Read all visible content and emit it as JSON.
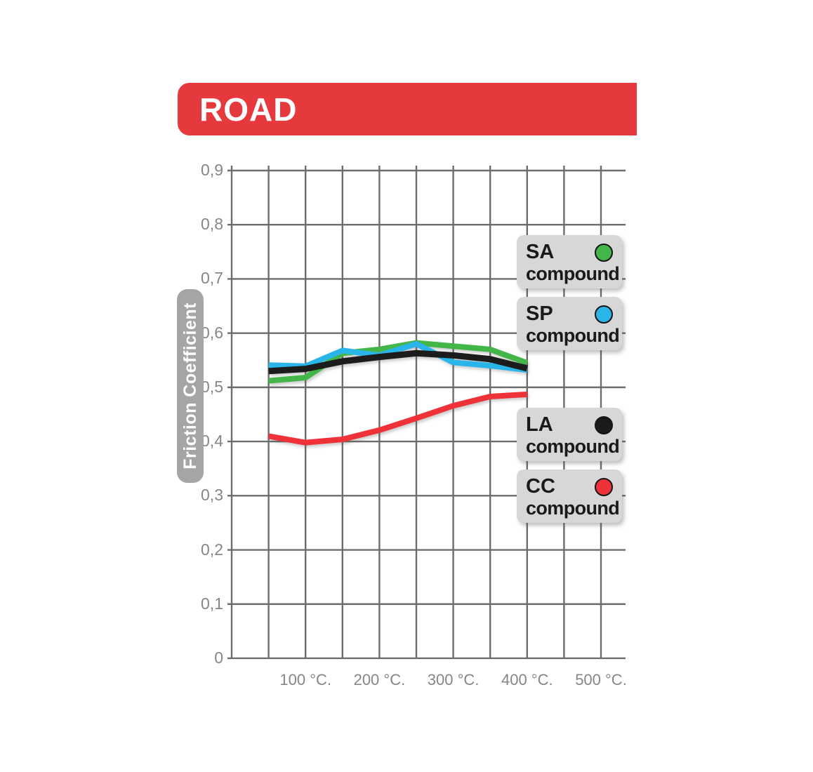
{
  "header": {
    "title": "ROAD"
  },
  "colors": {
    "banner_red": "#e5393e",
    "grid_gray": "#6d6d6d",
    "tick_text_gray": "#868686",
    "legend_box_gray": "#d7d7d8",
    "ylabel_pill_gray": "#a5a5a5",
    "sa_green": "#43b649",
    "sp_blue": "#29b5ea",
    "la_black": "#1a1a1a",
    "cc_red": "#ee3338"
  },
  "chart_data": {
    "type": "line",
    "title": "ROAD",
    "xlabel": "",
    "ylabel": "Friction Coefficient",
    "xlim_degC": [
      0,
      530
    ],
    "ylim": [
      0,
      0.9
    ],
    "grid": {
      "shown": true,
      "x_step_degC": 50,
      "y_step": 0.1
    },
    "legend_position": "right-overlay",
    "x_ticks": [
      {
        "value": 100,
        "label": "100 °C."
      },
      {
        "value": 200,
        "label": "200 °C."
      },
      {
        "value": 300,
        "label": "300 °C."
      },
      {
        "value": 400,
        "label": "400 °C."
      },
      {
        "value": 500,
        "label": "500 °C."
      }
    ],
    "y_ticks": [
      {
        "value": 0.9,
        "label": "0,9"
      },
      {
        "value": 0.8,
        "label": "0,8"
      },
      {
        "value": 0.7,
        "label": "0,7"
      },
      {
        "value": 0.6,
        "label": "0,6"
      },
      {
        "value": 0.5,
        "label": "0,5"
      },
      {
        "value": 0.4,
        "label": "0,4"
      },
      {
        "value": 0.3,
        "label": "0,3"
      },
      {
        "value": 0.2,
        "label": "0,2"
      },
      {
        "value": 0.1,
        "label": "0,1"
      },
      {
        "value": 0.0,
        "label": "0"
      }
    ],
    "x_degC": [
      50,
      100,
      150,
      200,
      250,
      300,
      350,
      400
    ],
    "series": [
      {
        "id": "SA",
        "name": "SA compound",
        "color": "#43b649",
        "stroke_width": 8,
        "values": [
          0.512,
          0.518,
          0.563,
          0.57,
          0.582,
          0.576,
          0.57,
          0.545
        ]
      },
      {
        "id": "SP",
        "name": "SP compound",
        "color": "#29b5ea",
        "stroke_width": 8,
        "values": [
          0.541,
          0.539,
          0.568,
          0.559,
          0.58,
          0.546,
          0.54,
          0.532
        ]
      },
      {
        "id": "LA",
        "name": "LA compound",
        "color": "#1a1a1a",
        "stroke_width": 9,
        "values": [
          0.53,
          0.534,
          0.548,
          0.556,
          0.563,
          0.559,
          0.552,
          0.535
        ]
      },
      {
        "id": "CC",
        "name": "CC compound",
        "color": "#ee3338",
        "stroke_width": 8,
        "values": [
          0.41,
          0.398,
          0.404,
          0.421,
          0.443,
          0.466,
          0.483,
          0.487
        ]
      }
    ]
  },
  "legend": {
    "items": [
      {
        "code": "SA",
        "sublabel": "compound",
        "color": "#43b649"
      },
      {
        "code": "SP",
        "sublabel": "compound",
        "color": "#29b5ea"
      },
      {
        "code": "LA",
        "sublabel": "compound",
        "color": "#1a1a1a"
      },
      {
        "code": "CC",
        "sublabel": "compound",
        "color": "#ee3338"
      }
    ]
  }
}
